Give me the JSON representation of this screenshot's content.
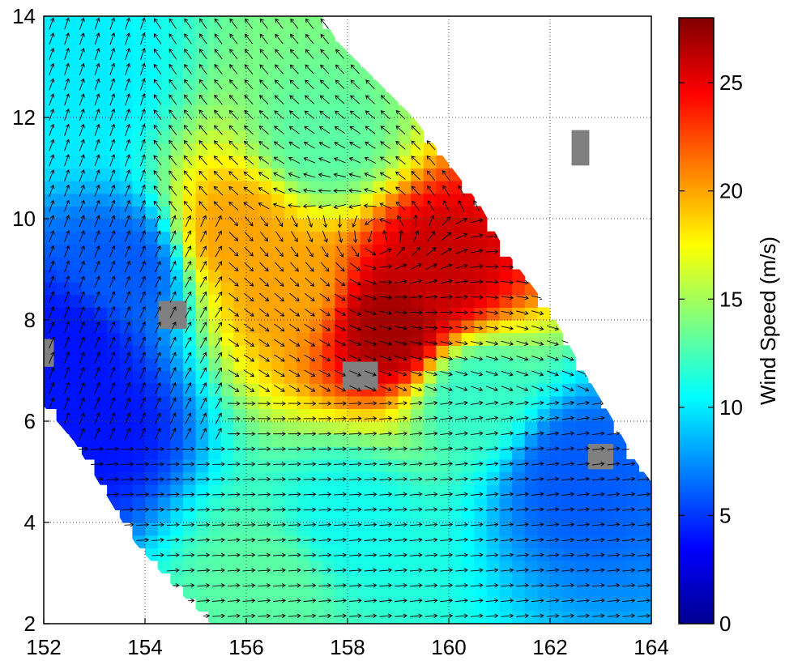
{
  "chart_data": {
    "type": "heatmap",
    "title": "",
    "xlabel": "",
    "ylabel": "",
    "xlim": [
      152,
      164
    ],
    "ylim": [
      2,
      14
    ],
    "x_ticks": [
      "152",
      "154",
      "156",
      "158",
      "160",
      "162",
      "164"
    ],
    "y_ticks": [
      "2",
      "4",
      "6",
      "8",
      "10",
      "12",
      "14"
    ],
    "grid": true,
    "grid_style": "dotted",
    "overlay": "wind vectors (quiver arrows)",
    "colorbar": {
      "label": "Wind Speed (m/s)",
      "range": [
        0,
        28
      ],
      "ticks": [
        "0",
        "5",
        "10",
        "15",
        "20",
        "25"
      ],
      "colormap": "jet"
    },
    "swath_boundary": [
      [
        152,
        14
      ],
      [
        157.5,
        14
      ],
      [
        157.8,
        13.5
      ],
      [
        158.3,
        13
      ],
      [
        158.8,
        12.5
      ],
      [
        159.3,
        12
      ],
      [
        160.6,
        10.3
      ],
      [
        161.1,
        9.4
      ],
      [
        162,
        8.2
      ],
      [
        162.6,
        7.1
      ],
      [
        163.2,
        6.1
      ],
      [
        163.7,
        5.2
      ],
      [
        164,
        4.8
      ],
      [
        164,
        2
      ],
      [
        155.3,
        2
      ],
      [
        154.5,
        2.8
      ],
      [
        153.8,
        3.6
      ],
      [
        153.2,
        4.6
      ],
      [
        152.6,
        5.6
      ],
      [
        152,
        6.3
      ]
    ],
    "wind_speed_field": [
      {
        "lon": 152.5,
        "lat": 12.5,
        "speed": 10
      },
      {
        "lon": 153.6,
        "lat": 9.0,
        "speed": 6
      },
      {
        "lon": 152.5,
        "lat": 7.5,
        "speed": 4
      },
      {
        "lon": 153.0,
        "lat": 6.0,
        "speed": 4
      },
      {
        "lon": 155.8,
        "lat": 9.7,
        "speed": 20
      },
      {
        "lon": 156.8,
        "lat": 8.7,
        "speed": 20
      },
      {
        "lon": 158.9,
        "lat": 7.9,
        "speed": 27
      },
      {
        "lon": 159.8,
        "lat": 9.0,
        "speed": 26
      },
      {
        "lon": 157.5,
        "lat": 11.5,
        "speed": 13
      },
      {
        "lon": 160.5,
        "lat": 6.5,
        "speed": 12
      },
      {
        "lon": 162.5,
        "lat": 5.0,
        "speed": 6
      },
      {
        "lon": 158.0,
        "lat": 4.0,
        "speed": 11
      },
      {
        "lon": 156.5,
        "lat": 2.8,
        "speed": 13
      }
    ],
    "wind_direction_deg_from_north": {
      "north_region": 150,
      "west_region": 200,
      "south_region": 265,
      "east_region": 300
    },
    "circulation_center": {
      "lon": 158.6,
      "lat": 9.6
    },
    "land_masks": [
      {
        "lon": 152.05,
        "lat": 7.35,
        "w": 0.3,
        "h": 0.55
      },
      {
        "lon": 154.55,
        "lat": 8.1,
        "w": 0.55,
        "h": 0.55
      },
      {
        "lon": 158.25,
        "lat": 6.9,
        "w": 0.7,
        "h": 0.55
      },
      {
        "lon": 162.6,
        "lat": 11.4,
        "w": 0.35,
        "h": 0.7
      },
      {
        "lon": 163.0,
        "lat": 5.3,
        "w": 0.5,
        "h": 0.5
      }
    ],
    "colors": {
      "land": "#808080",
      "arrow": "#000000"
    }
  }
}
